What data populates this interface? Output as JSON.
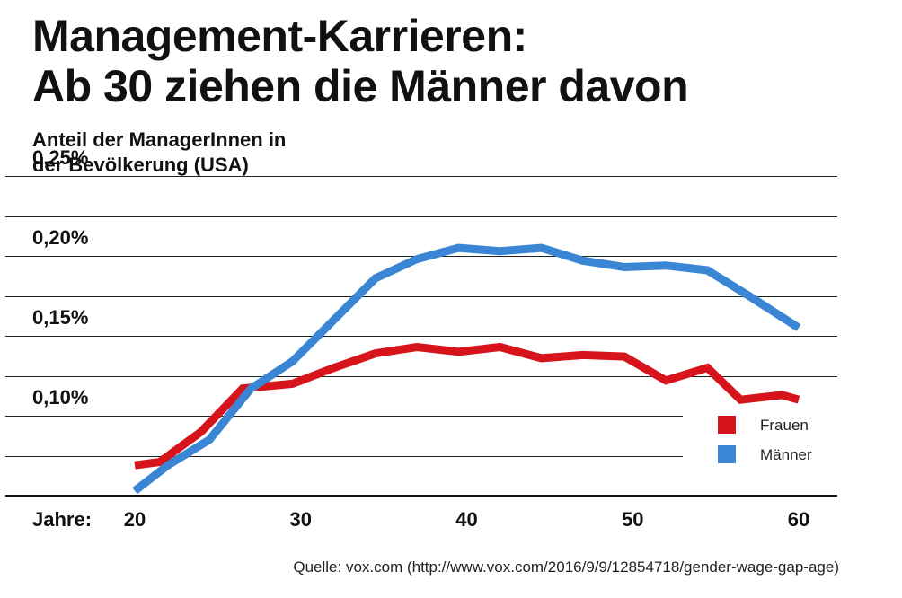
{
  "title_line1": "Management-Karrieren:",
  "title_line2": "Ab 30 ziehen die Männer davon",
  "source": "Quelle: vox.com (http://www.vox.com/2016/9/9/12854718/gender-wage-gap-age)",
  "chart_data": {
    "type": "line",
    "ylabel_line1": "Anteil der ManagerInnen in",
    "ylabel_line2": "der Bevölkerung (USA)",
    "xlabel": "Jahre:",
    "x_ticks": [
      "20",
      "30",
      "40",
      "50",
      "60"
    ],
    "y_ticks": [
      "0,25%",
      "0,20%",
      "0,15%",
      "0,10%"
    ],
    "xlim": [
      20,
      60
    ],
    "ylim": [
      0.05,
      0.25
    ],
    "grid": true,
    "legend_position": "bottom-right",
    "series": [
      {
        "name": "Frauen",
        "color": "#d7141c",
        "x": [
          20,
          21.5,
          24,
          26.5,
          29.5,
          32,
          34.5,
          37,
          39.5,
          42,
          44.5,
          47,
          49.5,
          52,
          54.5,
          56.5,
          59,
          60
        ],
        "y": [
          0.069,
          0.071,
          0.09,
          0.117,
          0.12,
          0.13,
          0.139,
          0.143,
          0.14,
          0.143,
          0.136,
          0.138,
          0.137,
          0.122,
          0.13,
          0.11,
          0.113,
          0.11
        ]
      },
      {
        "name": "Männer",
        "color": "#3a86d4",
        "x": [
          20,
          22,
          24.5,
          27,
          29.5,
          32,
          34.5,
          37,
          39.5,
          42,
          44.5,
          47,
          49.5,
          52,
          54.5,
          57,
          60
        ],
        "y": [
          0.053,
          0.069,
          0.085,
          0.117,
          0.134,
          0.16,
          0.186,
          0.198,
          0.205,
          0.203,
          0.205,
          0.197,
          0.193,
          0.194,
          0.191,
          0.175,
          0.155
        ]
      }
    ]
  }
}
